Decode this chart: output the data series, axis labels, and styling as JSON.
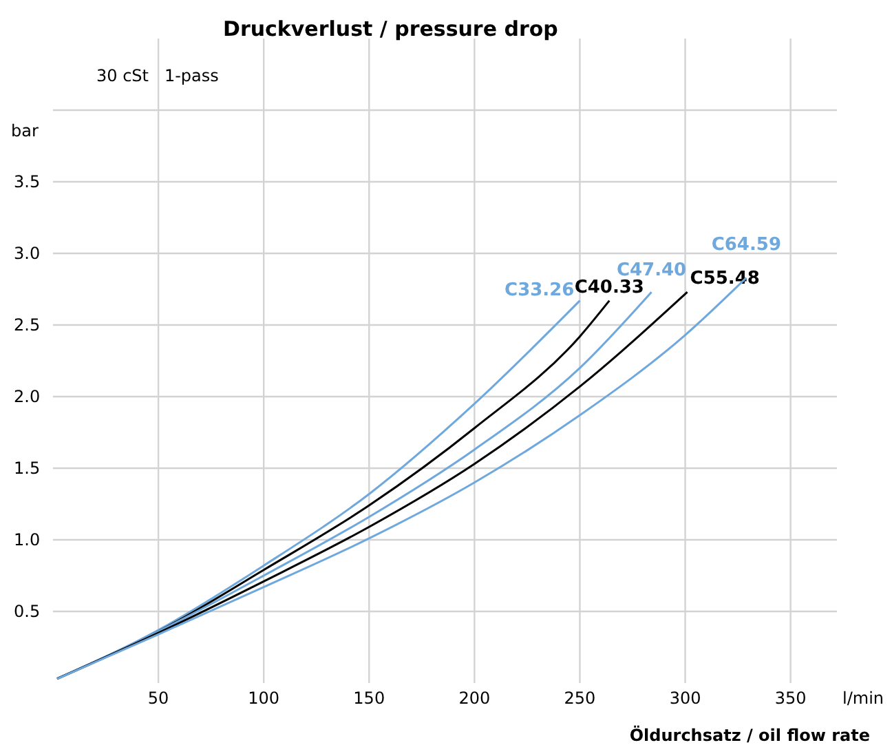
{
  "chart_data": {
    "type": "line",
    "title": "Druckverlust / pressure drop",
    "subtitle": "30 cSt   1-pass",
    "xlabel": "Öldurchsatz / oil flow rate",
    "ylabel": "bar",
    "annotations": [
      "l/min"
    ],
    "xlim": [
      0,
      372
    ],
    "xticks": [
      50,
      100,
      150,
      200,
      250,
      300,
      350
    ],
    "ylim": [
      0,
      4
    ],
    "yticks": [
      0.5,
      {
        "value": 1,
        "label": "1.0"
      },
      1.5,
      {
        "value": 2,
        "label": "2.0"
      },
      2.5,
      {
        "value": 3,
        "label": "3.0"
      },
      3.5,
      {
        "value": 4,
        "label": null
      }
    ],
    "grid": true,
    "marker": "none",
    "line_style": "solid",
    "series": [
      {
        "name": "C33.26",
        "color": "#6fa8dc",
        "x": [
          2,
          50,
          100,
          150,
          200,
          250
        ],
        "values": [
          0.03,
          0.37,
          0.82,
          1.32,
          1.95,
          2.67
        ]
      },
      {
        "name": "C40.33",
        "color": "#000000",
        "x": [
          2,
          50,
          100,
          150,
          200,
          250,
          264
        ],
        "values": [
          0.03,
          0.36,
          0.79,
          1.24,
          1.78,
          2.42,
          2.67
        ]
      },
      {
        "name": "C47.40",
        "color": "#6fa8dc",
        "x": [
          2,
          50,
          100,
          150,
          200,
          250,
          284
        ],
        "values": [
          0.03,
          0.36,
          0.75,
          1.16,
          1.63,
          2.2,
          2.73
        ]
      },
      {
        "name": "C55.48",
        "color": "#000000",
        "x": [
          2,
          50,
          100,
          150,
          200,
          250,
          301
        ],
        "values": [
          0.03,
          0.35,
          0.71,
          1.09,
          1.53,
          2.07,
          2.73
        ]
      },
      {
        "name": "C64.59",
        "color": "#6fa8dc",
        "x": [
          2,
          50,
          100,
          150,
          200,
          250,
          300,
          329
        ],
        "values": [
          0.03,
          0.34,
          0.67,
          1.01,
          1.4,
          1.87,
          2.43,
          2.83
        ]
      }
    ]
  }
}
